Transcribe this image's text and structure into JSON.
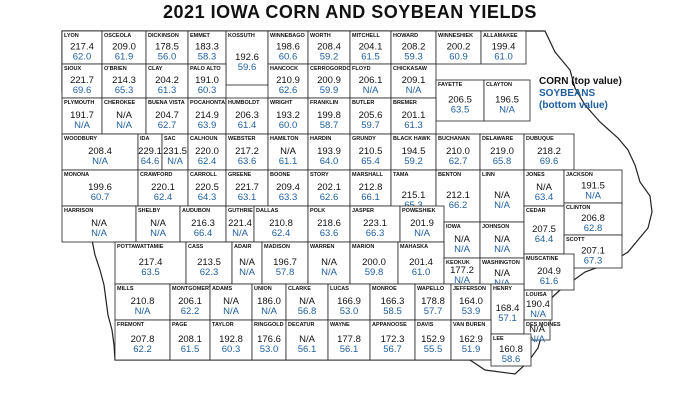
{
  "title": "2021 IOWA CORN AND SOYBEAN YIELDS",
  "legend": {
    "corn": "CORN (top value)",
    "soybeans": "SOYBEANS",
    "bottom": "(bottom value)"
  },
  "colors": {
    "corn": "#111111",
    "soybeans": "#1f5fa0"
  },
  "counties": [
    {
      "name": "LYON",
      "corn": "217.4",
      "soy": "62.0"
    },
    {
      "name": "OSCEOLA",
      "corn": "209.0",
      "soy": "61.9"
    },
    {
      "name": "DICKINSON",
      "corn": "178.5",
      "soy": "56.0"
    },
    {
      "name": "EMMET",
      "corn": "183.3",
      "soy": "58.3"
    },
    {
      "name": "KOSSUTH",
      "corn": "192.6",
      "soy": "59.6"
    },
    {
      "name": "WINNEBAGO",
      "corn": "198.6",
      "soy": "60.6"
    },
    {
      "name": "WORTH",
      "corn": "208.4",
      "soy": "59.2"
    },
    {
      "name": "MITCHELL",
      "corn": "204.1",
      "soy": "61.5"
    },
    {
      "name": "HOWARD",
      "corn": "208.2",
      "soy": "59.3"
    },
    {
      "name": "WINNESHIEK",
      "corn": "200.2",
      "soy": "60.9"
    },
    {
      "name": "ALLAMAKEE",
      "corn": "199.4",
      "soy": "61.0"
    },
    {
      "name": "SIOUX",
      "corn": "221.7",
      "soy": "69.6"
    },
    {
      "name": "O'BRIEN",
      "corn": "214.3",
      "soy": "65.3"
    },
    {
      "name": "CLAY",
      "corn": "204.2",
      "soy": "61.3"
    },
    {
      "name": "PALO ALTO",
      "corn": "191.0",
      "soy": "60.3"
    },
    {
      "name": "HANCOCK",
      "corn": "210.9",
      "soy": "62.6"
    },
    {
      "name": "CERROGORDO",
      "corn": "200.9",
      "soy": "59.9"
    },
    {
      "name": "FLOYD",
      "corn": "206.1",
      "soy": "N/A"
    },
    {
      "name": "CHICKASAW",
      "corn": "209.1",
      "soy": "N/A"
    },
    {
      "name": "FAYETTE",
      "corn": "206.5",
      "soy": "63.5"
    },
    {
      "name": "CLAYTON",
      "corn": "196.5",
      "soy": "N/A"
    },
    {
      "name": "PLYMOUTH",
      "corn": "191.7",
      "soy": "N/A"
    },
    {
      "name": "CHEROKEE",
      "corn": "N/A",
      "soy": "N/A"
    },
    {
      "name": "BUENA VISTA",
      "corn": "204.7",
      "soy": "62.7"
    },
    {
      "name": "POCAHONTAS",
      "corn": "214.9",
      "soy": "63.9"
    },
    {
      "name": "HUMBOLDT",
      "corn": "206.3",
      "soy": "61.4"
    },
    {
      "name": "WRIGHT",
      "corn": "193.2",
      "soy": "60.0"
    },
    {
      "name": "FRANKLIN",
      "corn": "199.8",
      "soy": "58.7"
    },
    {
      "name": "BUTLER",
      "corn": "205.6",
      "soy": "59.7"
    },
    {
      "name": "BREMER",
      "corn": "201.1",
      "soy": "61.3"
    },
    {
      "name": "WOODBURY",
      "corn": "208.4",
      "soy": "N/A"
    },
    {
      "name": "IDA",
      "corn": "229.1",
      "soy": "64.6"
    },
    {
      "name": "SAC",
      "corn": "231.5",
      "soy": "N/A"
    },
    {
      "name": "CALHOUN",
      "corn": "220.0",
      "soy": "62.4"
    },
    {
      "name": "WEBSTER",
      "corn": "217.2",
      "soy": "63.6"
    },
    {
      "name": "HAMILTON",
      "corn": "N/A",
      "soy": "61.1"
    },
    {
      "name": "HARDIN",
      "corn": "193.9",
      "soy": "64.0"
    },
    {
      "name": "GRUNDY",
      "corn": "210.5",
      "soy": "65.4"
    },
    {
      "name": "BLACK HAWK",
      "corn": "194.5",
      "soy": "59.2"
    },
    {
      "name": "BUCHANAN",
      "corn": "210.0",
      "soy": "62.7"
    },
    {
      "name": "DELAWARE",
      "corn": "219.0",
      "soy": "65.8"
    },
    {
      "name": "DUBUQUE",
      "corn": "218.2",
      "soy": "69.6"
    },
    {
      "name": "MONONA",
      "corn": "199.6",
      "soy": "60.7"
    },
    {
      "name": "CRAWFORD",
      "corn": "220.1",
      "soy": "62.4"
    },
    {
      "name": "CARROLL",
      "corn": "220.5",
      "soy": "64.3"
    },
    {
      "name": "GREENE",
      "corn": "221.7",
      "soy": "63.1"
    },
    {
      "name": "BOONE",
      "corn": "209.4",
      "soy": "63.3"
    },
    {
      "name": "STORY",
      "corn": "202.1",
      "soy": "62.6"
    },
    {
      "name": "MARSHALL",
      "corn": "212.8",
      "soy": "66.1"
    },
    {
      "name": "TAMA",
      "corn": "215.1",
      "soy": "65.3"
    },
    {
      "name": "BENTON",
      "corn": "212.1",
      "soy": "66.2"
    },
    {
      "name": "LINN",
      "corn": "N/A",
      "soy": "N/A"
    },
    {
      "name": "JONES",
      "corn": "N/A",
      "soy": "63.4"
    },
    {
      "name": "JACKSON",
      "corn": "191.5",
      "soy": "N/A"
    },
    {
      "name": "CLINTON",
      "corn": "206.8",
      "soy": "62.8"
    },
    {
      "name": "HARRISON",
      "corn": "N/A",
      "soy": "N/A"
    },
    {
      "name": "SHELBY",
      "corn": "N/A",
      "soy": "N/A"
    },
    {
      "name": "AUDUBON",
      "corn": "216.3",
      "soy": "66.4"
    },
    {
      "name": "GUTHRIE",
      "corn": "221.4",
      "soy": "N/A"
    },
    {
      "name": "DALLAS",
      "corn": "210.8",
      "soy": "62.4"
    },
    {
      "name": "POLK",
      "corn": "218.6",
      "soy": "63.6"
    },
    {
      "name": "JASPER",
      "corn": "223.1",
      "soy": "66.3"
    },
    {
      "name": "POWESHIEK",
      "corn": "201.9",
      "soy": "N/A"
    },
    {
      "name": "IOWA",
      "corn": "N/A",
      "soy": "N/A"
    },
    {
      "name": "JOHNSON",
      "corn": "N/A",
      "soy": "N/A"
    },
    {
      "name": "CEDAR",
      "corn": "207.5",
      "soy": "64.4"
    },
    {
      "name": "SCOTT",
      "corn": "207.1",
      "soy": "67.3"
    },
    {
      "name": "MUSCATINE",
      "corn": "204.9",
      "soy": "61.6"
    },
    {
      "name": "POTTAWATTAMIE",
      "corn": "217.4",
      "soy": "63.5"
    },
    {
      "name": "CASS",
      "corn": "213.5",
      "soy": "62.3"
    },
    {
      "name": "ADAIR",
      "corn": "N/A",
      "soy": "N/A"
    },
    {
      "name": "MADISON",
      "corn": "196.7",
      "soy": "57.8"
    },
    {
      "name": "WARREN",
      "corn": "N/A",
      "soy": "N/A"
    },
    {
      "name": "MARION",
      "corn": "200.0",
      "soy": "59.8"
    },
    {
      "name": "MAHASKA",
      "corn": "201.4",
      "soy": "61.0"
    },
    {
      "name": "KEOKUK",
      "corn": "177.2",
      "soy": "N/A"
    },
    {
      "name": "WASHINGTON",
      "corn": "N/A",
      "soy": "N/A"
    },
    {
      "name": "LOUISA",
      "corn": "190.4",
      "soy": "N/A"
    },
    {
      "name": "MILLS",
      "corn": "210.8",
      "soy": "N/A"
    },
    {
      "name": "MONTGOMERY",
      "corn": "206.1",
      "soy": "62.2"
    },
    {
      "name": "ADAMS",
      "corn": "N/A",
      "soy": "N/A"
    },
    {
      "name": "UNION",
      "corn": "186.0",
      "soy": "N/A"
    },
    {
      "name": "CLARKE",
      "corn": "N/A",
      "soy": "56.8"
    },
    {
      "name": "LUCAS",
      "corn": "166.9",
      "soy": "53.0"
    },
    {
      "name": "MONROE",
      "corn": "166.3",
      "soy": "58.5"
    },
    {
      "name": "WAPELLO",
      "corn": "178.8",
      "soy": "57.7"
    },
    {
      "name": "JEFFERSON",
      "corn": "164.0",
      "soy": "53.9"
    },
    {
      "name": "HENRY",
      "corn": "168.4",
      "soy": "57.1"
    },
    {
      "name": "DES MOINES",
      "corn": "N/A",
      "soy": "N/A"
    },
    {
      "name": "FREMONT",
      "corn": "207.8",
      "soy": "62.2"
    },
    {
      "name": "PAGE",
      "corn": "208.1",
      "soy": "61.5"
    },
    {
      "name": "TAYLOR",
      "corn": "192.8",
      "soy": "60.3"
    },
    {
      "name": "RINGGOLD",
      "corn": "176.6",
      "soy": "53.0"
    },
    {
      "name": "DECATUR",
      "corn": "N/A",
      "soy": "56.1"
    },
    {
      "name": "WAYNE",
      "corn": "177.8",
      "soy": "56.1"
    },
    {
      "name": "APPANOOSE",
      "corn": "172.3",
      "soy": "56.7"
    },
    {
      "name": "DAVIS",
      "corn": "152.9",
      "soy": "55.5"
    },
    {
      "name": "VAN BUREN",
      "corn": "162.9",
      "soy": "51.9"
    },
    {
      "name": "LEE",
      "corn": "160.8",
      "soy": "58.6"
    }
  ]
}
